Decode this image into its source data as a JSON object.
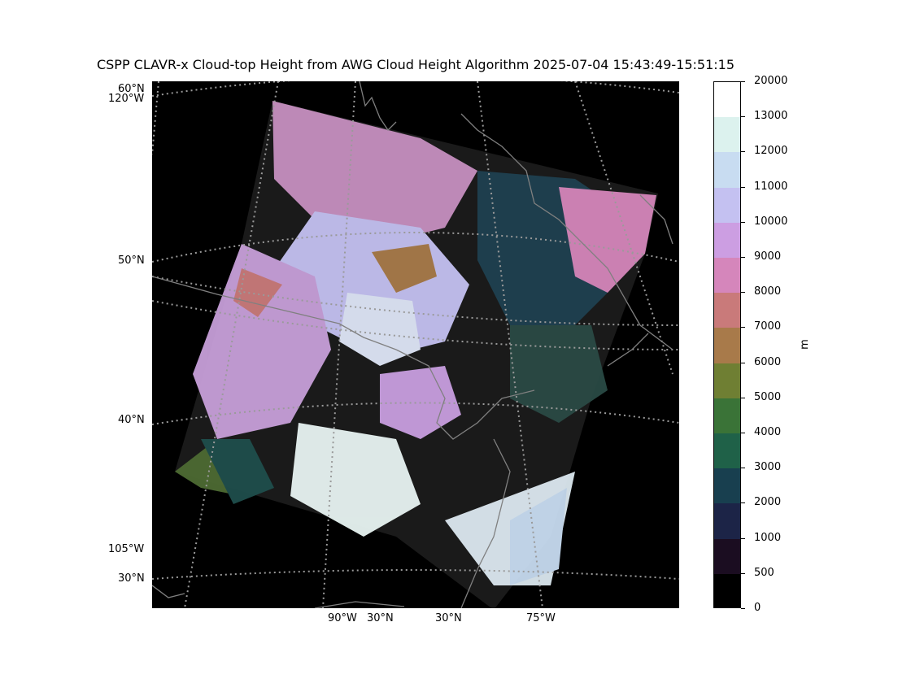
{
  "title": "CSPP CLAVR-x Cloud-top Height from AWG Cloud Height Algorithm 2025-07-04 15:43:49-15:51:15",
  "map": {
    "lat_labels": [
      "60°N",
      "50°N",
      "40°N",
      "30°N"
    ],
    "lon_labels_left": [
      "120°W",
      "105°W"
    ],
    "lon_labels_bottom": [
      "90°W",
      "30°N",
      "30°N",
      "75°W"
    ],
    "background_color": "#000000",
    "graticule_color": "#9a9a9a",
    "coastline_color": "#808080"
  },
  "colorbar": {
    "unit": "m",
    "tick_labels": [
      "20000",
      "13000",
      "12000",
      "11000",
      "10000",
      "9000",
      "8000",
      "7000",
      "6000",
      "5000",
      "4000",
      "3000",
      "2000",
      "1000",
      "500",
      "0"
    ],
    "colors_top_to_bottom": [
      "#ffffff",
      "#dcf2ee",
      "#c8dcf1",
      "#c4c1f1",
      "#cc9ee2",
      "#d586bb",
      "#c97a7a",
      "#a87a4a",
      "#6f7f33",
      "#3a7337",
      "#1f6148",
      "#183f4f",
      "#1c2447",
      "#1b0d21",
      "#000000"
    ]
  }
}
